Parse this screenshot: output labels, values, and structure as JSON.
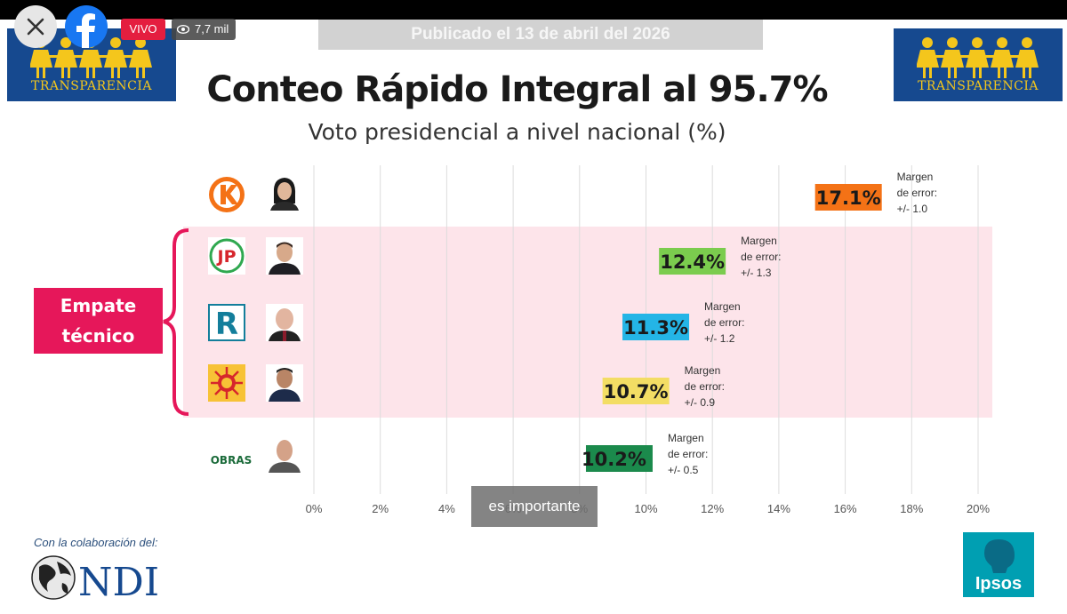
{
  "overlay": {
    "live_label": "VIVO",
    "views": "7,7 mil",
    "caption": "es importante"
  },
  "header": {
    "published": "Publicado el 13 de abril del 2026",
    "title": "Conteo Rápido Integral al 95.7%",
    "subtitle": "Voto presidencial a nivel nacional (%)",
    "org_name": "TRANSPARENCIA"
  },
  "tie_label": {
    "line1": "Empate",
    "line2": "técnico"
  },
  "footer": {
    "collab": "Con la colaboración del:",
    "ndi": "NDI",
    "ipsos": "Ipsos"
  },
  "colors": {
    "brand_blue": "#16498f",
    "brand_gold": "#f4c61c",
    "tie_pink": "#fde4ea",
    "tie_red": "#e6175a",
    "live_red": "#e41e3f",
    "ipsos_teal": "#009fb2"
  },
  "chart_data": {
    "type": "bar",
    "orientation": "horizontal",
    "title": "Conteo Rápido Integral al 95.7%",
    "subtitle": "Voto presidencial a nivel nacional (%)",
    "xlim": [
      0,
      20
    ],
    "x_ticks": [
      "0%",
      "2%",
      "4%",
      "6%",
      "8%",
      "10%",
      "12%",
      "14%",
      "16%",
      "18%",
      "20%"
    ],
    "grid": true,
    "margin_label_1": "Margen",
    "margin_label_2": "de error:",
    "bars": [
      {
        "party": "K",
        "value": 17.1,
        "label": "17.1%",
        "margin": "+/- 1.0",
        "color": "#f47216"
      },
      {
        "party": "JP",
        "value": 12.4,
        "label": "12.4%",
        "margin": "+/- 1.3",
        "color": "#7bcc4e"
      },
      {
        "party": "R",
        "value": 11.3,
        "label": "11.3%",
        "margin": "+/- 1.2",
        "color": "#24b5e6"
      },
      {
        "party": "sol",
        "value": 10.7,
        "label": "10.7%",
        "margin": "+/- 0.9",
        "color": "#f3dd64"
      },
      {
        "party": "OBRAS",
        "value": 10.2,
        "label": "10.2%",
        "margin": "+/- 0.5",
        "color": "#1b8a4c"
      }
    ]
  }
}
